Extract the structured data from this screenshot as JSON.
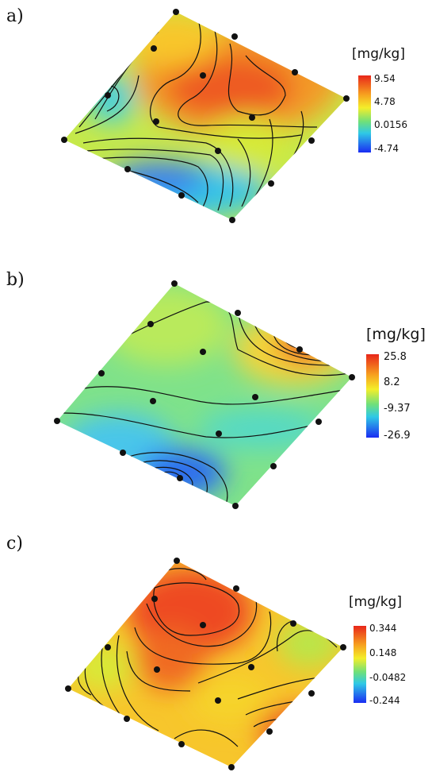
{
  "chart_data": [
    {
      "type": "contour",
      "panel_label": "a)",
      "unit_label": "[mg/kg]",
      "colorbar_ticks": [
        "9.54",
        "4.78",
        "0.0156",
        "-4.74"
      ],
      "range": [
        -4.74,
        9.54
      ]
    },
    {
      "type": "contour",
      "panel_label": "b)",
      "unit_label": "[mg/kg]",
      "colorbar_ticks": [
        "25.8",
        "8.2",
        "-9.37",
        "-26.9"
      ],
      "range": [
        -26.9,
        25.8
      ]
    },
    {
      "type": "contour",
      "panel_label": "c)",
      "unit_label": "[mg/kg]",
      "colorbar_ticks": [
        "0.344",
        "0.148",
        "-0.0482",
        "-0.244"
      ],
      "range": [
        -0.244,
        0.344
      ]
    }
  ]
}
